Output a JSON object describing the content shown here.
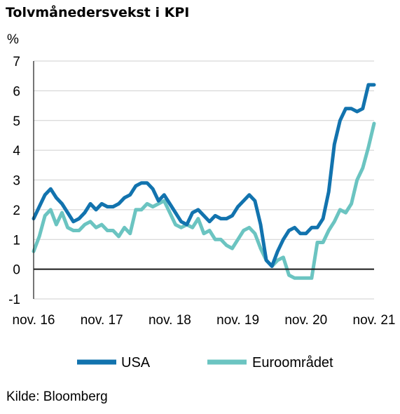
{
  "chart_data": {
    "type": "line",
    "title": "Tolvmånedersvekst i KPI",
    "ylabel": "%",
    "ylim": [
      -1,
      7
    ],
    "yticks": [
      "-1",
      "0",
      "1",
      "2",
      "3",
      "4",
      "5",
      "6",
      "7"
    ],
    "xlim": [
      "2016-11",
      "2021-11"
    ],
    "xticks": [
      {
        "label": "nov. 16",
        "date": "2016-11"
      },
      {
        "label": "nov. 17",
        "date": "2017-11"
      },
      {
        "label": "nov. 18",
        "date": "2018-11"
      },
      {
        "label": "nov. 19",
        "date": "2019-11"
      },
      {
        "label": "nov. 20",
        "date": "2020-11"
      },
      {
        "label": "nov. 21",
        "date": "2021-11"
      }
    ],
    "grid": "horizontal",
    "legend": "bottom",
    "series": [
      {
        "name": "USA",
        "color": "#1273ae",
        "points": [
          [
            "2016-11",
            1.7
          ],
          [
            "2016-12",
            2.1
          ],
          [
            "2017-01",
            2.5
          ],
          [
            "2017-02",
            2.7
          ],
          [
            "2017-03",
            2.4
          ],
          [
            "2017-04",
            2.2
          ],
          [
            "2017-05",
            1.9
          ],
          [
            "2017-06",
            1.6
          ],
          [
            "2017-07",
            1.7
          ],
          [
            "2017-08",
            1.9
          ],
          [
            "2017-09",
            2.2
          ],
          [
            "2017-10",
            2.0
          ],
          [
            "2017-11",
            2.2
          ],
          [
            "2017-12",
            2.1
          ],
          [
            "2018-01",
            2.1
          ],
          [
            "2018-02",
            2.2
          ],
          [
            "2018-03",
            2.4
          ],
          [
            "2018-04",
            2.5
          ],
          [
            "2018-05",
            2.8
          ],
          [
            "2018-06",
            2.9
          ],
          [
            "2018-07",
            2.9
          ],
          [
            "2018-08",
            2.7
          ],
          [
            "2018-09",
            2.3
          ],
          [
            "2018-10",
            2.5
          ],
          [
            "2018-11",
            2.2
          ],
          [
            "2018-12",
            1.9
          ],
          [
            "2019-01",
            1.6
          ],
          [
            "2019-02",
            1.5
          ],
          [
            "2019-03",
            1.9
          ],
          [
            "2019-04",
            2.0
          ],
          [
            "2019-05",
            1.8
          ],
          [
            "2019-06",
            1.6
          ],
          [
            "2019-07",
            1.8
          ],
          [
            "2019-08",
            1.7
          ],
          [
            "2019-09",
            1.7
          ],
          [
            "2019-10",
            1.8
          ],
          [
            "2019-11",
            2.1
          ],
          [
            "2019-12",
            2.3
          ],
          [
            "2020-01",
            2.5
          ],
          [
            "2020-02",
            2.3
          ],
          [
            "2020-03",
            1.5
          ],
          [
            "2020-04",
            0.3
          ],
          [
            "2020-05",
            0.1
          ],
          [
            "2020-06",
            0.6
          ],
          [
            "2020-07",
            1.0
          ],
          [
            "2020-08",
            1.3
          ],
          [
            "2020-09",
            1.4
          ],
          [
            "2020-10",
            1.2
          ],
          [
            "2020-11",
            1.2
          ],
          [
            "2020-12",
            1.4
          ],
          [
            "2021-01",
            1.4
          ],
          [
            "2021-02",
            1.7
          ],
          [
            "2021-03",
            2.6
          ],
          [
            "2021-04",
            4.2
          ],
          [
            "2021-05",
            5.0
          ],
          [
            "2021-06",
            5.4
          ],
          [
            "2021-07",
            5.4
          ],
          [
            "2021-08",
            5.3
          ],
          [
            "2021-09",
            5.4
          ],
          [
            "2021-10",
            6.2
          ],
          [
            "2021-11",
            6.2
          ]
        ]
      },
      {
        "name": "Euroområdet",
        "color": "#6bc4c1",
        "points": [
          [
            "2016-11",
            0.6
          ],
          [
            "2016-12",
            1.1
          ],
          [
            "2017-01",
            1.8
          ],
          [
            "2017-02",
            2.0
          ],
          [
            "2017-03",
            1.5
          ],
          [
            "2017-04",
            1.9
          ],
          [
            "2017-05",
            1.4
          ],
          [
            "2017-06",
            1.3
          ],
          [
            "2017-07",
            1.3
          ],
          [
            "2017-08",
            1.5
          ],
          [
            "2017-09",
            1.6
          ],
          [
            "2017-10",
            1.4
          ],
          [
            "2017-11",
            1.5
          ],
          [
            "2017-12",
            1.3
          ],
          [
            "2018-01",
            1.3
          ],
          [
            "2018-02",
            1.1
          ],
          [
            "2018-03",
            1.4
          ],
          [
            "2018-04",
            1.2
          ],
          [
            "2018-05",
            2.0
          ],
          [
            "2018-06",
            2.0
          ],
          [
            "2018-07",
            2.2
          ],
          [
            "2018-08",
            2.1
          ],
          [
            "2018-09",
            2.2
          ],
          [
            "2018-10",
            2.3
          ],
          [
            "2018-11",
            1.9
          ],
          [
            "2018-12",
            1.5
          ],
          [
            "2019-01",
            1.4
          ],
          [
            "2019-02",
            1.5
          ],
          [
            "2019-03",
            1.4
          ],
          [
            "2019-04",
            1.7
          ],
          [
            "2019-05",
            1.2
          ],
          [
            "2019-06",
            1.3
          ],
          [
            "2019-07",
            1.0
          ],
          [
            "2019-08",
            1.0
          ],
          [
            "2019-09",
            0.8
          ],
          [
            "2019-10",
            0.7
          ],
          [
            "2019-11",
            1.0
          ],
          [
            "2019-12",
            1.3
          ],
          [
            "2020-01",
            1.4
          ],
          [
            "2020-02",
            1.2
          ],
          [
            "2020-03",
            0.7
          ],
          [
            "2020-04",
            0.3
          ],
          [
            "2020-05",
            0.1
          ],
          [
            "2020-06",
            0.3
          ],
          [
            "2020-07",
            0.4
          ],
          [
            "2020-08",
            -0.2
          ],
          [
            "2020-09",
            -0.3
          ],
          [
            "2020-10",
            -0.3
          ],
          [
            "2020-11",
            -0.3
          ],
          [
            "2020-12",
            -0.3
          ],
          [
            "2021-01",
            0.9
          ],
          [
            "2021-02",
            0.9
          ],
          [
            "2021-03",
            1.3
          ],
          [
            "2021-04",
            1.6
          ],
          [
            "2021-05",
            2.0
          ],
          [
            "2021-06",
            1.9
          ],
          [
            "2021-07",
            2.2
          ],
          [
            "2021-08",
            3.0
          ],
          [
            "2021-09",
            3.4
          ],
          [
            "2021-10",
            4.1
          ],
          [
            "2021-11",
            4.9
          ]
        ]
      }
    ]
  },
  "source": "Kilde: Bloomberg"
}
